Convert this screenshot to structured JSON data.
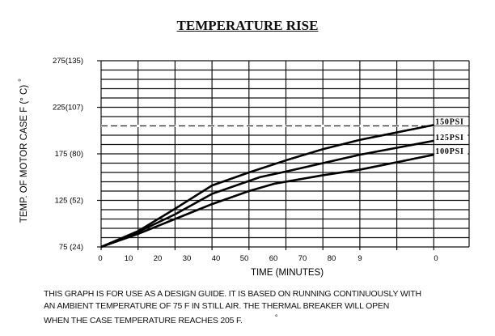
{
  "chart_data": {
    "type": "line",
    "title": "TEMPERATURE RISE",
    "xlabel": "TIME (MINUTES)",
    "ylabel": "TEMP. OF MOTOR CASE    F (° C)",
    "ylabel_degree_mark": "°",
    "x_tick_labels": [
      "0",
      "10",
      "20",
      "30",
      "40",
      "50",
      "60",
      "70",
      "80",
      "9",
      "0"
    ],
    "y_tick_labels": [
      "275(135)",
      "225(107)",
      "175 (80)",
      "125 (52)",
      "75 (24)"
    ],
    "y_tick_values": [
      275,
      225,
      175,
      125,
      75
    ],
    "xlim": [
      0,
      100
    ],
    "ylim": [
      75,
      275
    ],
    "grid": true,
    "reference_line": {
      "y": 205,
      "style": "dashed"
    },
    "series": [
      {
        "name": "150PSI",
        "x": [
          0,
          10,
          20,
          30,
          40,
          50,
          60,
          70,
          80,
          90
        ],
        "y": [
          75,
          92,
          116,
          141,
          155,
          168,
          180,
          190,
          198,
          206
        ]
      },
      {
        "name": "125PSI",
        "x": [
          0,
          10,
          20,
          30,
          43,
          50,
          60,
          70,
          90
        ],
        "y": [
          75,
          91,
          110,
          132,
          150,
          156,
          165,
          174,
          189
        ]
      },
      {
        "name": "100PSI",
        "x": [
          0,
          10,
          20,
          30,
          40,
          47,
          60,
          70,
          90
        ],
        "y": [
          75,
          89,
          105,
          121,
          135,
          143,
          152,
          158,
          174
        ]
      }
    ]
  },
  "note": {
    "line1": "THIS GRAPH IS FOR USE AS A DESIGN GUIDE.  IT IS BASED ON RUNNING CONTINUOUSLY WITH",
    "line2": "AN AMBIENT TEMPERATURE OF  75   F IN STILL AIR.  THE THERMAL BREAKER WILL OPEN",
    "line3": "WHEN THE CASE TEMPERATURE REACHES 205   F.",
    "degree_mark": "°"
  }
}
